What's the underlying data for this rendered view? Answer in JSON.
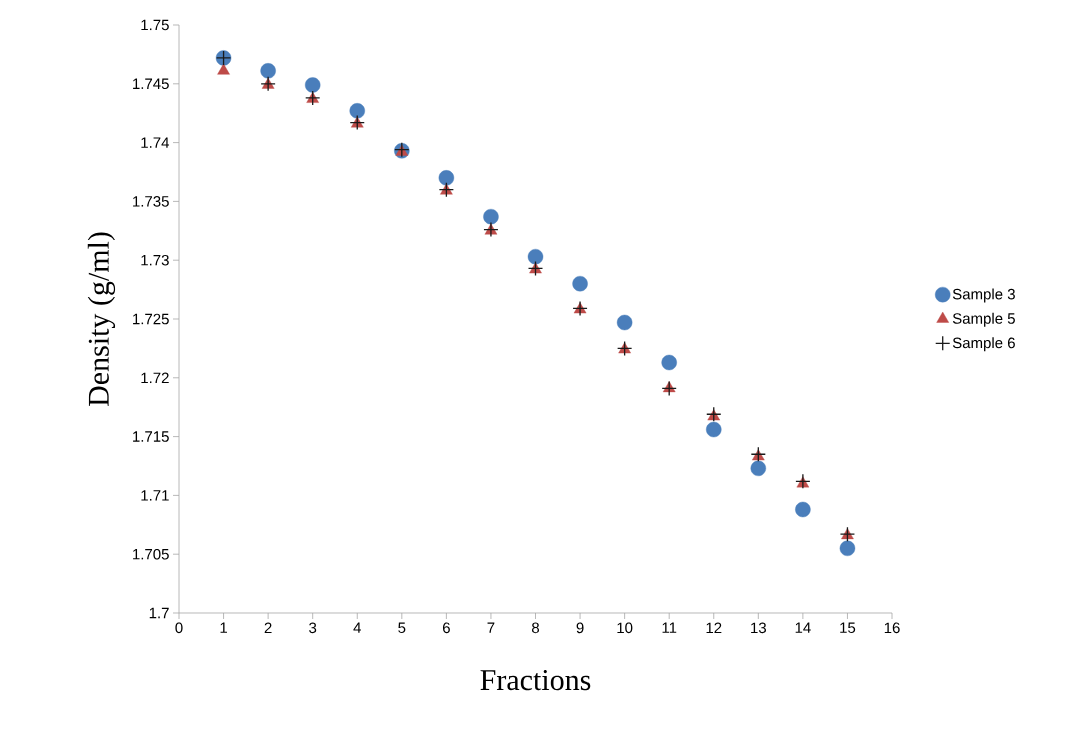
{
  "chart_data": {
    "type": "scatter",
    "xlabel": "Fractions",
    "ylabel": "Density (g/ml)",
    "x": [
      1,
      2,
      3,
      4,
      5,
      6,
      7,
      8,
      9,
      10,
      11,
      12,
      13,
      14,
      15
    ],
    "xlim": [
      0,
      16
    ],
    "xticks": [
      0,
      1,
      2,
      3,
      4,
      5,
      6,
      7,
      8,
      9,
      10,
      11,
      12,
      13,
      14,
      15,
      16
    ],
    "ylim": [
      1.7,
      1.75
    ],
    "yticks": [
      1.7,
      1.705,
      1.71,
      1.715,
      1.72,
      1.725,
      1.73,
      1.735,
      1.74,
      1.745,
      1.75
    ],
    "grid": false,
    "legend": "right",
    "series": [
      {
        "name": "Sample 3",
        "color": "#4a7ebb",
        "marker": "circle",
        "values": [
          1.7472,
          1.7461,
          1.7449,
          1.7427,
          1.7393,
          1.737,
          1.7337,
          1.7303,
          1.728,
          1.7247,
          1.7213,
          1.7156,
          1.7123,
          1.7088,
          1.7055
        ]
      },
      {
        "name": "Sample 5",
        "color": "#be4b48",
        "marker": "triangle",
        "values": [
          1.7461,
          1.7449,
          1.7437,
          1.7416,
          1.7392,
          1.7359,
          1.7325,
          1.7292,
          1.7258,
          1.7224,
          1.7191,
          1.7167,
          1.7133,
          1.711,
          1.7066
        ]
      },
      {
        "name": "Sample 6",
        "color": "#1a1a1a",
        "marker": "cross",
        "values": [
          1.7472,
          1.745,
          1.7438,
          1.7417,
          1.7394,
          1.736,
          1.7326,
          1.7293,
          1.7259,
          1.7225,
          1.7191,
          1.7169,
          1.7135,
          1.7112,
          1.7067
        ]
      }
    ]
  }
}
